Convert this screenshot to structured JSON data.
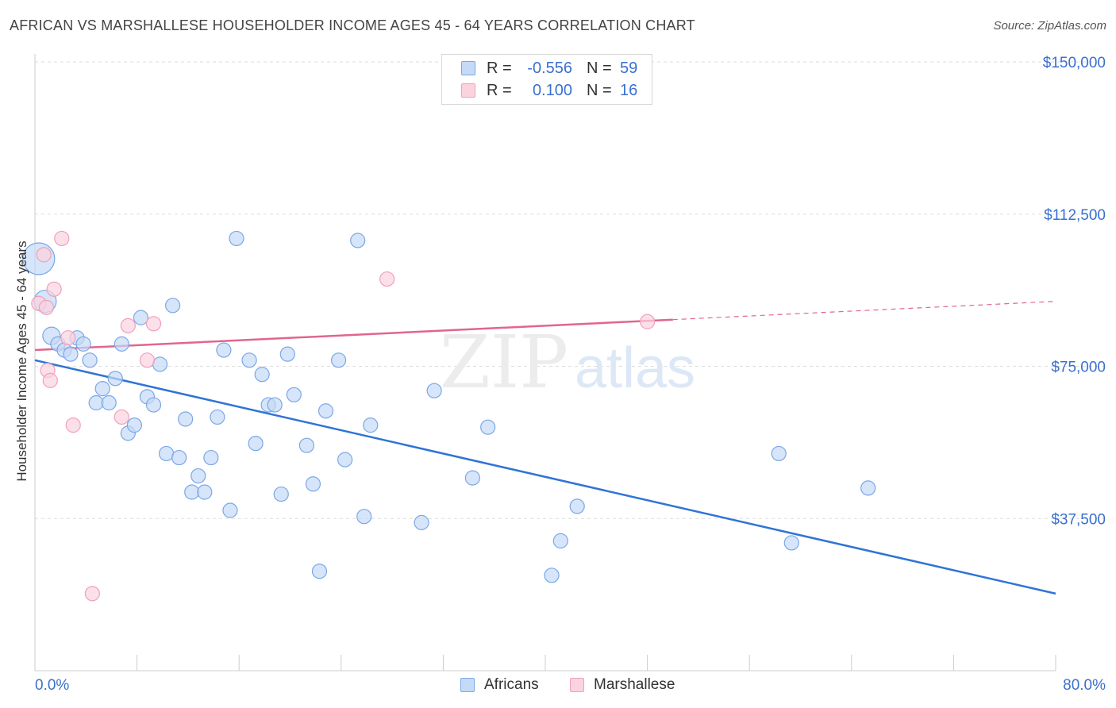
{
  "title": "AFRICAN VS MARSHALLESE HOUSEHOLDER INCOME AGES 45 - 64 YEARS CORRELATION CHART",
  "source": "Source: ZipAtlas.com",
  "watermark": {
    "zip": "ZIP",
    "atlas": "atlas"
  },
  "legend": {
    "rows": [
      {
        "r_label": "R =",
        "r_value": "-0.556",
        "n_label": "N =",
        "n_value": "59",
        "color": "#7aa7e8",
        "fill": "#c5daf6"
      },
      {
        "r_label": "R =",
        "r_value": "0.100",
        "n_label": "N =",
        "n_value": "16",
        "color": "#f0a0b8",
        "fill": "#fbd3df"
      }
    ]
  },
  "bottom_legend": [
    {
      "label": "Africans",
      "color": "#7aa7e8",
      "fill": "#c5daf6"
    },
    {
      "label": "Marshallese",
      "color": "#f0a0b8",
      "fill": "#fbd3df"
    }
  ],
  "chart_data": {
    "type": "scatter",
    "title": "AFRICAN VS MARSHALLESE HOUSEHOLDER INCOME AGES 45 - 64 YEARS CORRELATION CHART",
    "xlabel": "",
    "ylabel": "Householder Income Ages 45 - 64 years",
    "xlim": [
      0,
      80
    ],
    "ylim": [
      0,
      150000
    ],
    "x_ticks_labels": [
      "0.0%",
      "80.0%"
    ],
    "y_ticks": [
      37500,
      75000,
      112500,
      150000
    ],
    "y_tick_labels": [
      "$37,500",
      "$75,000",
      "$112,500",
      "$150,000"
    ],
    "grid": "horizontal dashed",
    "legend_position": "top-center",
    "series": [
      {
        "name": "Africans",
        "color": "#4a84dc",
        "fill": "#c5daf6",
        "points": [
          [
            0.3,
            101500
          ],
          [
            0.8,
            91000
          ],
          [
            1.3,
            82500
          ],
          [
            1.8,
            80500
          ],
          [
            2.3,
            79000
          ],
          [
            2.8,
            78000
          ],
          [
            3.3,
            82000
          ],
          [
            3.8,
            80500
          ],
          [
            4.3,
            76500
          ],
          [
            4.8,
            66000
          ],
          [
            5.3,
            69500
          ],
          [
            5.8,
            66000
          ],
          [
            6.3,
            72000
          ],
          [
            6.8,
            80500
          ],
          [
            7.3,
            58500
          ],
          [
            7.8,
            60500
          ],
          [
            8.3,
            87000
          ],
          [
            8.8,
            67500
          ],
          [
            9.3,
            65500
          ],
          [
            9.8,
            75500
          ],
          [
            10.3,
            53500
          ],
          [
            10.8,
            90000
          ],
          [
            11.3,
            52500
          ],
          [
            11.8,
            62000
          ],
          [
            12.3,
            44000
          ],
          [
            12.8,
            48000
          ],
          [
            13.3,
            44000
          ],
          [
            13.8,
            52500
          ],
          [
            14.3,
            62500
          ],
          [
            14.8,
            79000
          ],
          [
            15.3,
            39500
          ],
          [
            15.8,
            106500
          ],
          [
            16.8,
            76500
          ],
          [
            17.3,
            56000
          ],
          [
            17.8,
            73000
          ],
          [
            18.3,
            65500
          ],
          [
            18.8,
            65500
          ],
          [
            19.3,
            43500
          ],
          [
            19.8,
            78000
          ],
          [
            20.3,
            68000
          ],
          [
            21.3,
            55500
          ],
          [
            21.8,
            46000
          ],
          [
            22.3,
            24500
          ],
          [
            22.8,
            64000
          ],
          [
            23.8,
            76500
          ],
          [
            24.3,
            52000
          ],
          [
            25.3,
            106000
          ],
          [
            25.8,
            38000
          ],
          [
            26.3,
            60500
          ],
          [
            30.3,
            36500
          ],
          [
            31.3,
            69000
          ],
          [
            34.3,
            47500
          ],
          [
            35.5,
            60000
          ],
          [
            40.5,
            23500
          ],
          [
            41.2,
            32000
          ],
          [
            42.5,
            40500
          ],
          [
            58.3,
            53500
          ],
          [
            59.3,
            31500
          ],
          [
            65.3,
            45000
          ]
        ],
        "trend": {
          "x": [
            0,
            80
          ],
          "y": [
            76500,
            19000
          ]
        }
      },
      {
        "name": "Marshallese",
        "color": "#e8709a",
        "fill": "#fbd3df",
        "points": [
          [
            0.3,
            90500
          ],
          [
            0.7,
            102500
          ],
          [
            0.9,
            89500
          ],
          [
            1.0,
            74000
          ],
          [
            1.2,
            71500
          ],
          [
            1.5,
            94000
          ],
          [
            2.1,
            106500
          ],
          [
            2.6,
            82000
          ],
          [
            3.0,
            60500
          ],
          [
            4.5,
            19000
          ],
          [
            6.8,
            62500
          ],
          [
            7.3,
            85000
          ],
          [
            8.8,
            76500
          ],
          [
            9.3,
            85500
          ],
          [
            27.6,
            96500
          ],
          [
            48.0,
            86000
          ]
        ],
        "trend_solid": {
          "x": [
            0,
            50
          ],
          "y": [
            79000,
            86500
          ]
        },
        "trend_dashed": {
          "x": [
            50,
            80
          ],
          "y": [
            86500,
            91000
          ]
        }
      }
    ]
  }
}
